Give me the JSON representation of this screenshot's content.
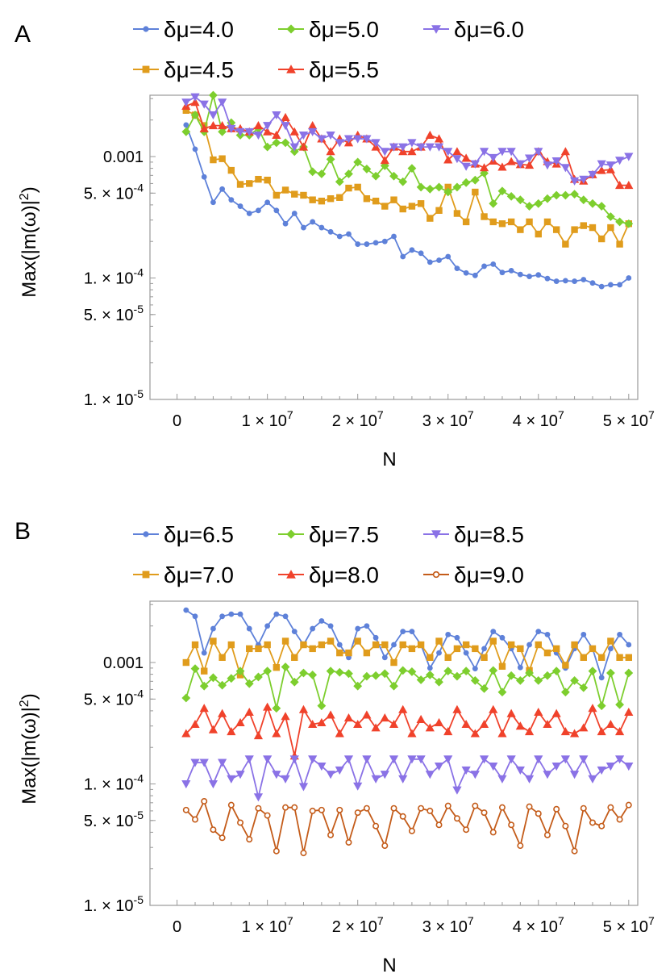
{
  "chart_data": [
    {
      "panel": "A",
      "type": "line",
      "xlabel": "N",
      "ylabel": "Max(|m(ω)|²)",
      "yscale": "log",
      "xlim": [
        -3000000,
        51000000
      ],
      "ylim": [
        1e-05,
        0.0032
      ],
      "xticks": [
        0,
        10000000,
        20000000,
        30000000,
        40000000,
        50000000
      ],
      "xtick_labels": [
        "0",
        "1 × 10",
        "2 × 10",
        "3 × 10",
        "4 × 10",
        "5 × 10"
      ],
      "xtick_exponent": "7",
      "yticks": [
        1e-05,
        5e-05,
        0.0001,
        0.0005,
        0.001
      ],
      "ytick_labels": [
        "1. × 10",
        "5. × 10",
        "1. × 10",
        "5. × 10",
        "0.001"
      ],
      "ytick_exponents": [
        "-5",
        "-5",
        "-4",
        "-4",
        ""
      ],
      "legend": {
        "placement": "top",
        "rows": [
          [
            "δμ=4.0",
            "δμ=5.0",
            "δμ=6.0"
          ],
          [
            "δμ=4.5",
            "δμ=5.5"
          ]
        ]
      },
      "x": [
        1000000,
        2000000,
        3000000,
        4000000,
        5000000,
        6000000,
        7000000,
        8000000,
        9000000,
        10000000,
        11000000,
        12000000,
        13000000,
        14000000,
        15000000,
        16000000,
        17000000,
        18000000,
        19000000,
        20000000,
        21000000,
        22000000,
        23000000,
        24000000,
        25000000,
        26000000,
        27000000,
        28000000,
        29000000,
        30000000,
        31000000,
        32000000,
        33000000,
        34000000,
        35000000,
        36000000,
        37000000,
        38000000,
        39000000,
        40000000,
        41000000,
        42000000,
        43000000,
        44000000,
        45000000,
        46000000,
        47000000,
        48000000,
        49000000,
        50000000
      ],
      "series": [
        {
          "name": "δμ=4.0",
          "color": "#5E81D9",
          "marker": "circle",
          "values": [
            0.00182,
            0.00115,
            0.00068,
            0.00042,
            0.00054,
            0.00044,
            0.00039,
            0.00034,
            0.00036,
            0.00042,
            0.00036,
            0.00028,
            0.00034,
            0.00026,
            0.00029,
            0.00026,
            0.00024,
            0.00022,
            0.00023,
            0.00019,
            0.00019,
            0.000195,
            0.0002,
            0.00022,
            0.00015,
            0.00017,
            0.00016,
            0.000135,
            0.00014,
            0.00015,
            0.00012,
            0.00011,
            0.000105,
            0.000125,
            0.00013,
            0.000111,
            0.000115,
            0.000107,
            0.000103,
            0.000106,
            9.9e-05,
            9.4e-05,
            9.5e-05,
            9.4e-05,
            9.7e-05,
            9.1e-05,
            8.5e-05,
            8.8e-05,
            8.8e-05,
            0.0001
          ]
        },
        {
          "name": "δμ=4.5",
          "color": "#E09C1C",
          "marker": "square",
          "values": [
            0.0024,
            0.0022,
            0.0018,
            0.00094,
            0.00096,
            0.00077,
            0.00059,
            0.0006,
            0.00065,
            0.00064,
            0.00048,
            0.00053,
            0.00049,
            0.00048,
            0.00044,
            0.00043,
            0.00045,
            0.00046,
            0.00055,
            0.00056,
            0.00045,
            0.00043,
            0.00039,
            0.00044,
            0.00037,
            0.00039,
            0.00041,
            0.00031,
            0.00036,
            0.00056,
            0.00034,
            0.00029,
            0.00051,
            0.00032,
            0.00029,
            0.00028,
            0.00029,
            0.00025,
            0.00029,
            0.00023,
            0.00029,
            0.00025,
            0.00019,
            0.00025,
            0.00027,
            0.00026,
            0.00021,
            0.00026,
            0.00019,
            0.00028
          ]
        },
        {
          "name": "δμ=5.0",
          "color": "#7DCE2E",
          "marker": "diamond",
          "values": [
            0.0016,
            0.0022,
            0.0016,
            0.0032,
            0.0016,
            0.0019,
            0.0015,
            0.0015,
            0.0017,
            0.0012,
            0.0013,
            0.0013,
            0.0011,
            0.0012,
            0.00075,
            0.00072,
            0.00095,
            0.00062,
            0.00072,
            0.0009,
            0.00079,
            0.00069,
            0.00084,
            0.00069,
            0.00062,
            0.0008,
            0.00056,
            0.00054,
            0.00056,
            0.00051,
            0.00056,
            0.00061,
            0.00064,
            0.00073,
            0.00041,
            0.00052,
            0.00047,
            0.00044,
            0.00039,
            0.00041,
            0.00045,
            0.00048,
            0.00048,
            0.00049,
            0.00044,
            0.00041,
            0.00039,
            0.00032,
            0.00029,
            0.00028
          ]
        },
        {
          "name": "δμ=5.5",
          "color": "#F0422B",
          "marker": "triangle-up",
          "values": [
            0.0026,
            0.0028,
            0.0017,
            0.0018,
            0.0018,
            0.0017,
            0.0017,
            0.0016,
            0.0018,
            0.0016,
            0.0015,
            0.0021,
            0.0016,
            0.0012,
            0.0018,
            0.0014,
            0.0011,
            0.0014,
            0.0013,
            0.0015,
            0.0014,
            0.0012,
            0.00093,
            0.0012,
            0.0011,
            0.0011,
            0.0012,
            0.0015,
            0.0014,
            0.00094,
            0.0011,
            0.00097,
            0.00087,
            0.00081,
            0.00092,
            0.00082,
            0.00091,
            0.00086,
            0.00085,
            0.0011,
            0.00091,
            0.00087,
            0.0011,
            0.00065,
            0.00063,
            0.00071,
            0.00077,
            0.00078,
            0.00058,
            0.00058
          ]
        },
        {
          "name": "δμ=6.0",
          "color": "#8A72E6",
          "marker": "triangle-down",
          "values": [
            0.0028,
            0.0031,
            0.0027,
            0.0022,
            0.0028,
            0.0017,
            0.0016,
            0.0016,
            0.0015,
            0.0018,
            0.0022,
            0.0018,
            0.0012,
            0.0015,
            0.0016,
            0.0014,
            0.0015,
            0.0013,
            0.0014,
            0.0014,
            0.0014,
            0.0013,
            0.0011,
            0.0012,
            0.0012,
            0.0013,
            0.0012,
            0.0012,
            0.0012,
            0.0011,
            0.00096,
            0.00083,
            0.00087,
            0.0011,
            0.00098,
            0.0011,
            0.0011,
            0.00087,
            0.00097,
            0.0011,
            0.00085,
            0.00092,
            0.00081,
            0.00063,
            0.00065,
            0.00071,
            0.00087,
            0.00085,
            0.00093,
            0.001
          ]
        }
      ]
    },
    {
      "panel": "B",
      "type": "line",
      "xlabel": "N",
      "ylabel": "Max(|m(ω)|²)",
      "yscale": "log",
      "xlim": [
        -3000000,
        51000000
      ],
      "ylim": [
        1e-05,
        0.0032
      ],
      "xticks": [
        0,
        10000000,
        20000000,
        30000000,
        40000000,
        50000000
      ],
      "xtick_labels": [
        "0",
        "1 × 10",
        "2 × 10",
        "3 × 10",
        "4 × 10",
        "5 × 10"
      ],
      "xtick_exponent": "7",
      "yticks": [
        1e-05,
        5e-05,
        0.0001,
        0.0005,
        0.001
      ],
      "ytick_labels": [
        "1. × 10",
        "5. × 10",
        "1. × 10",
        "5. × 10",
        "0.001"
      ],
      "ytick_exponents": [
        "-5",
        "-5",
        "-4",
        "-4",
        ""
      ],
      "legend": {
        "placement": "top",
        "rows": [
          [
            "δμ=6.5",
            "δμ=7.5",
            "δμ=8.5"
          ],
          [
            "δμ=7.0",
            "δμ=8.0",
            "δμ=9.0"
          ]
        ]
      },
      "x": [
        1000000,
        2000000,
        3000000,
        4000000,
        5000000,
        6000000,
        7000000,
        8000000,
        9000000,
        10000000,
        11000000,
        12000000,
        13000000,
        14000000,
        15000000,
        16000000,
        17000000,
        18000000,
        19000000,
        20000000,
        21000000,
        22000000,
        23000000,
        24000000,
        25000000,
        26000000,
        27000000,
        28000000,
        29000000,
        30000000,
        31000000,
        32000000,
        33000000,
        34000000,
        35000000,
        36000000,
        37000000,
        38000000,
        39000000,
        40000000,
        41000000,
        42000000,
        43000000,
        44000000,
        45000000,
        46000000,
        47000000,
        48000000,
        49000000,
        50000000
      ],
      "series": [
        {
          "name": "δμ=6.5",
          "color": "#5E81D9",
          "marker": "circle",
          "values": [
            0.0027,
            0.0024,
            0.0012,
            0.0019,
            0.0024,
            0.0025,
            0.0025,
            0.0019,
            0.0014,
            0.002,
            0.0025,
            0.0024,
            0.0018,
            0.0014,
            0.0019,
            0.0022,
            0.002,
            0.0014,
            0.0011,
            0.0019,
            0.002,
            0.0016,
            0.0011,
            0.0014,
            0.0018,
            0.0018,
            0.0014,
            0.0009,
            0.0012,
            0.0017,
            0.0016,
            0.0012,
            0.00089,
            0.0013,
            0.0018,
            0.0016,
            0.0013,
            0.00091,
            0.0014,
            0.0018,
            0.0017,
            0.0012,
            0.0009,
            0.0013,
            0.0017,
            0.0013,
            0.00075,
            0.0013,
            0.0017,
            0.0014
          ]
        },
        {
          "name": "δμ=7.0",
          "color": "#E09C1C",
          "marker": "square",
          "values": [
            0.001,
            0.0014,
            0.00085,
            0.0015,
            0.0011,
            0.0014,
            0.00079,
            0.0013,
            0.0013,
            0.0014,
            0.00091,
            0.0015,
            0.0011,
            0.0014,
            0.0013,
            0.0014,
            0.0015,
            0.0012,
            0.0012,
            0.0015,
            0.0012,
            0.0014,
            0.0014,
            0.001,
            0.0014,
            0.0013,
            0.0014,
            0.0011,
            0.0015,
            0.0011,
            0.0013,
            0.0014,
            0.0013,
            0.0011,
            0.0015,
            0.00093,
            0.0014,
            0.0013,
            0.00086,
            0.0014,
            0.0012,
            0.0013,
            0.00095,
            0.0014,
            0.0011,
            0.0013,
            0.0011,
            0.0015,
            0.0011,
            0.0011
          ]
        },
        {
          "name": "δμ=7.5",
          "color": "#7DCE2E",
          "marker": "diamond",
          "values": [
            0.00051,
            0.00089,
            0.00064,
            0.00075,
            0.00065,
            0.00074,
            0.00085,
            0.00067,
            0.00076,
            0.00085,
            0.00042,
            0.00092,
            0.00069,
            0.00082,
            0.00079,
            0.00044,
            0.00085,
            0.00083,
            0.00081,
            0.00064,
            0.00077,
            0.00078,
            0.00081,
            0.00064,
            0.00086,
            0.00084,
            0.00072,
            0.00079,
            0.00069,
            0.00085,
            0.00077,
            0.00085,
            0.00071,
            0.00061,
            0.00086,
            0.00057,
            0.00078,
            0.00071,
            0.00082,
            0.00071,
            0.00078,
            0.00085,
            0.00057,
            0.00071,
            0.00062,
            0.00085,
            0.00044,
            0.00082,
            0.00045,
            0.00082
          ]
        },
        {
          "name": "δμ=8.0",
          "color": "#F0422B",
          "marker": "triangle-up",
          "values": [
            0.00026,
            0.00031,
            0.00042,
            0.00028,
            0.00038,
            0.00027,
            0.00032,
            0.00039,
            0.00025,
            0.00043,
            0.00026,
            0.00036,
            0.00017,
            0.00041,
            0.00031,
            0.00032,
            0.00037,
            0.00026,
            0.00035,
            0.00031,
            0.00037,
            0.00029,
            0.00035,
            0.00031,
            0.00041,
            0.00026,
            0.00034,
            0.00029,
            0.00032,
            0.00027,
            0.00041,
            0.00031,
            0.00026,
            0.00031,
            0.00041,
            0.00026,
            0.00038,
            0.0003,
            0.00027,
            0.00039,
            0.00031,
            0.00038,
            0.00027,
            0.00026,
            0.00029,
            0.00042,
            0.00027,
            0.00031,
            0.00027,
            0.00039
          ]
        },
        {
          "name": "δμ=8.5",
          "color": "#8A72E6",
          "marker": "triangle-down",
          "values": [
            0.0001,
            0.00015,
            0.00015,
            0.0001,
            0.00015,
            0.00011,
            0.00012,
            0.00016,
            7.8e-05,
            0.00016,
            0.00012,
            0.00011,
            0.00016,
            9.5e-05,
            0.00016,
            0.00014,
            0.00012,
            0.00013,
            0.00016,
            9.6e-05,
            0.00016,
            0.00011,
            0.00012,
            0.00016,
            0.00011,
            0.00016,
            0.00016,
            0.00012,
            0.00014,
            0.00016,
            8.9e-05,
            0.00013,
            0.00012,
            0.00016,
            0.00014,
            0.00011,
            0.00016,
            0.00013,
            0.00011,
            0.00016,
            0.00012,
            0.00014,
            0.00016,
            0.00012,
            0.00016,
            0.00011,
            0.00013,
            0.00014,
            0.00016,
            0.00014
          ]
        },
        {
          "name": "δμ=9.0",
          "color": "#C45C1A",
          "marker": "open-circle",
          "values": [
            6.1e-05,
            5.1e-05,
            7.2e-05,
            4.2e-05,
            3.6e-05,
            6.7e-05,
            4.8e-05,
            3.5e-05,
            6.3e-05,
            5.5e-05,
            2.8e-05,
            6.4e-05,
            6.4e-05,
            2.7e-05,
            6e-05,
            6.1e-05,
            3.8e-05,
            6.1e-05,
            3.3e-05,
            5.8e-05,
            6.3e-05,
            4.5e-05,
            3.1e-05,
            6.3e-05,
            5.4e-05,
            4.1e-05,
            6.3e-05,
            6e-05,
            4.6e-05,
            6.6e-05,
            5.2e-05,
            4.2e-05,
            6.6e-05,
            5.8e-05,
            4e-05,
            6.4e-05,
            4.6e-05,
            3.1e-05,
            6.5e-05,
            5.7e-05,
            3.8e-05,
            6.2e-05,
            4.5e-05,
            2.8e-05,
            6.3e-05,
            4.8e-05,
            4.5e-05,
            6.4e-05,
            5.1e-05,
            6.7e-05
          ]
        }
      ]
    }
  ]
}
